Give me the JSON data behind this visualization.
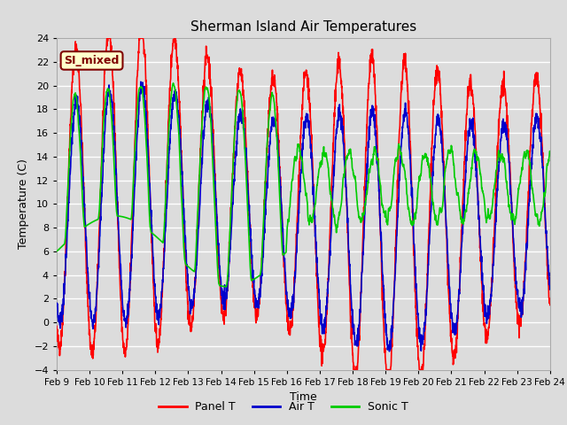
{
  "title": "Sherman Island Air Temperatures",
  "xlabel": "Time",
  "ylabel": "Temperature (C)",
  "xlim_days": [
    9,
    24
  ],
  "ylim": [
    -4,
    24
  ],
  "yticks": [
    -4,
    -2,
    0,
    2,
    4,
    6,
    8,
    10,
    12,
    14,
    16,
    18,
    20,
    22,
    24
  ],
  "xtick_labels": [
    "Feb 9",
    "Feb 10",
    "Feb 11",
    "Feb 12",
    "Feb 13",
    "Feb 14",
    "Feb 15",
    "Feb 16",
    "Feb 17",
    "Feb 18",
    "Feb 19",
    "Feb 20",
    "Feb 21",
    "Feb 22",
    "Feb 23",
    "Feb 24"
  ],
  "annotation_text": "SI_mixed",
  "annotation_bg": "#ffffcc",
  "annotation_fg": "#800000",
  "line_colors": {
    "panel": "#ff0000",
    "air": "#0000cc",
    "sonic": "#00cc00"
  },
  "line_widths": {
    "panel": 1.2,
    "air": 1.2,
    "sonic": 1.2
  },
  "legend_labels": [
    "Panel T",
    "Air T",
    "Sonic T"
  ],
  "plot_bg": "#dcdcdc",
  "grid_color": "#ffffff",
  "seed": 42,
  "n_points": 2160,
  "days_start": 9,
  "days_end": 24
}
